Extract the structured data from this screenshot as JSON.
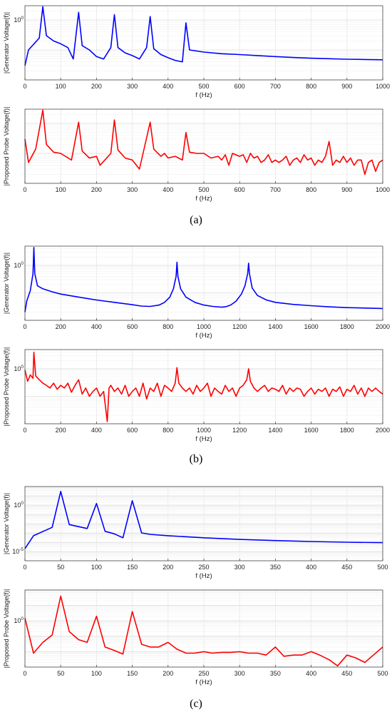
{
  "panel_labels": [
    "(a)",
    "(b)",
    "(c)"
  ],
  "chart_data": [
    {
      "type": "line",
      "panel": "a",
      "series": [
        {
          "name": "",
          "color": "#0000ff"
        }
      ],
      "ylabel": "|Generator Voltage(f)|",
      "xlabel": "f (Hz)",
      "xlim": [
        0,
        1000
      ],
      "xticks": [
        0,
        100,
        200,
        300,
        400,
        500,
        600,
        700,
        800,
        900,
        1000
      ],
      "yscale": "log",
      "ylim": [
        0.01,
        3
      ],
      "yticks": [
        1
      ],
      "ytick_labels": [
        "10^0"
      ],
      "x": [
        0,
        10,
        40,
        50,
        60,
        80,
        100,
        120,
        135,
        150,
        160,
        180,
        200,
        220,
        240,
        250,
        260,
        280,
        300,
        320,
        340,
        350,
        360,
        380,
        400,
        420,
        440,
        450,
        460,
        500,
        550,
        600,
        650,
        700,
        750,
        800,
        850,
        900,
        950,
        1000
      ],
      "y": [
        0.03,
        0.1,
        0.25,
        2.8,
        0.3,
        0.2,
        0.16,
        0.12,
        0.05,
        1.8,
        0.14,
        0.1,
        0.06,
        0.05,
        0.12,
        1.5,
        0.12,
        0.08,
        0.065,
        0.05,
        0.12,
        1.3,
        0.11,
        0.07,
        0.055,
        0.045,
        0.04,
        0.8,
        0.1,
        0.085,
        0.075,
        0.07,
        0.065,
        0.06,
        0.056,
        0.053,
        0.051,
        0.049,
        0.048,
        0.047
      ],
      "grid": true
    },
    {
      "type": "line",
      "panel": "a",
      "series": [
        {
          "name": "",
          "color": "#ff0000"
        }
      ],
      "ylabel": "|Proposed Probe Voltage(f)|",
      "xlabel": "f (Hz)",
      "xlim": [
        0,
        1000
      ],
      "xticks": [
        0,
        100,
        200,
        300,
        400,
        500,
        600,
        700,
        800,
        900,
        1000
      ],
      "yscale": "log",
      "ylim": [
        0.01,
        3
      ],
      "yticks": [],
      "ytick_labels": [],
      "x": [
        0,
        10,
        30,
        50,
        60,
        80,
        100,
        130,
        150,
        160,
        180,
        200,
        210,
        240,
        250,
        260,
        280,
        300,
        320,
        330,
        350,
        360,
        380,
        390,
        400,
        420,
        440,
        450,
        460,
        480,
        500,
        520,
        540,
        550,
        560,
        570,
        580,
        600,
        610,
        620,
        630,
        640,
        650,
        660,
        670,
        680,
        690,
        700,
        710,
        720,
        730,
        740,
        750,
        760,
        770,
        780,
        790,
        800,
        810,
        820,
        830,
        840,
        850,
        860,
        870,
        880,
        890,
        900,
        910,
        920,
        930,
        940,
        950,
        960,
        970,
        980,
        990,
        1000
      ],
      "y": [
        0.3,
        0.05,
        0.14,
        2.8,
        0.2,
        0.11,
        0.1,
        0.06,
        1.1,
        0.12,
        0.07,
        0.08,
        0.04,
        0.1,
        1.3,
        0.13,
        0.07,
        0.06,
        0.03,
        0.1,
        1.1,
        0.14,
        0.08,
        0.1,
        0.07,
        0.08,
        0.06,
        0.5,
        0.11,
        0.1,
        0.1,
        0.07,
        0.08,
        0.06,
        0.09,
        0.04,
        0.1,
        0.08,
        0.09,
        0.05,
        0.1,
        0.07,
        0.08,
        0.05,
        0.06,
        0.09,
        0.05,
        0.06,
        0.05,
        0.06,
        0.08,
        0.04,
        0.06,
        0.07,
        0.05,
        0.09,
        0.06,
        0.07,
        0.04,
        0.06,
        0.05,
        0.08,
        0.25,
        0.04,
        0.06,
        0.05,
        0.08,
        0.05,
        0.07,
        0.04,
        0.06,
        0.06,
        0.02,
        0.05,
        0.06,
        0.025,
        0.05,
        0.06
      ],
      "grid": true
    },
    {
      "type": "line",
      "panel": "b",
      "series": [
        {
          "name": "",
          "color": "#0000ff"
        }
      ],
      "ylabel": "|Generator Voltage(f)|",
      "xlabel": "f (Hz)",
      "xlim": [
        0,
        2000
      ],
      "xticks": [
        0,
        200,
        400,
        600,
        800,
        1000,
        1200,
        1400,
        1600,
        1800,
        2000
      ],
      "yscale": "log",
      "ylim": [
        0.01,
        5
      ],
      "yticks": [
        1
      ],
      "ytick_labels": [
        "10^0"
      ],
      "x": [
        0,
        10,
        30,
        45,
        50,
        55,
        70,
        100,
        150,
        200,
        300,
        400,
        500,
        600,
        650,
        700,
        750,
        780,
        810,
        830,
        845,
        850,
        855,
        870,
        900,
        950,
        1000,
        1050,
        1100,
        1120,
        1150,
        1180,
        1210,
        1230,
        1245,
        1250,
        1255,
        1270,
        1300,
        1350,
        1400,
        1500,
        1600,
        1700,
        1800,
        1900,
        2000
      ],
      "y": [
        0.02,
        0.05,
        0.12,
        0.5,
        4.5,
        0.5,
        0.18,
        0.14,
        0.11,
        0.09,
        0.07,
        0.055,
        0.045,
        0.037,
        0.033,
        0.032,
        0.036,
        0.045,
        0.07,
        0.14,
        0.4,
        1.3,
        0.4,
        0.14,
        0.07,
        0.045,
        0.036,
        0.032,
        0.03,
        0.031,
        0.036,
        0.05,
        0.09,
        0.18,
        0.5,
        1.2,
        0.5,
        0.15,
        0.08,
        0.055,
        0.045,
        0.038,
        0.034,
        0.031,
        0.029,
        0.028,
        0.027
      ],
      "grid": true
    },
    {
      "type": "line",
      "panel": "b",
      "series": [
        {
          "name": "",
          "color": "#ff0000"
        }
      ],
      "ylabel": "|Proposed Probe Voltage(f)|",
      "xlabel": "f (Hz)",
      "xlim": [
        0,
        2000
      ],
      "xticks": [
        0,
        200,
        400,
        600,
        800,
        1000,
        1200,
        1400,
        1600,
        1800,
        2000
      ],
      "yscale": "log",
      "ylim": [
        0.01,
        5
      ],
      "yticks": [
        1
      ],
      "ytick_labels": [
        "10^0"
      ],
      "x": [
        0,
        15,
        30,
        45,
        50,
        60,
        80,
        100,
        120,
        140,
        160,
        180,
        200,
        220,
        240,
        260,
        280,
        300,
        320,
        340,
        360,
        380,
        400,
        420,
        440,
        460,
        470,
        480,
        500,
        520,
        540,
        560,
        580,
        600,
        620,
        640,
        660,
        680,
        700,
        720,
        740,
        760,
        780,
        800,
        820,
        840,
        850,
        860,
        880,
        900,
        920,
        940,
        960,
        980,
        1000,
        1020,
        1040,
        1060,
        1080,
        1100,
        1120,
        1140,
        1160,
        1180,
        1200,
        1220,
        1240,
        1250,
        1260,
        1280,
        1300,
        1320,
        1340,
        1360,
        1380,
        1400,
        1420,
        1440,
        1460,
        1480,
        1500,
        1520,
        1540,
        1560,
        1580,
        1600,
        1620,
        1640,
        1660,
        1680,
        1700,
        1720,
        1740,
        1760,
        1780,
        1800,
        1820,
        1840,
        1860,
        1880,
        1900,
        1920,
        1940,
        1960,
        1980,
        2000
      ],
      "y": [
        0.9,
        0.35,
        0.6,
        0.45,
        4.0,
        0.55,
        0.4,
        0.3,
        0.25,
        0.2,
        0.3,
        0.18,
        0.25,
        0.2,
        0.3,
        0.14,
        0.25,
        0.4,
        0.12,
        0.2,
        0.1,
        0.15,
        0.2,
        0.1,
        0.15,
        0.012,
        0.2,
        0.25,
        0.15,
        0.2,
        0.12,
        0.25,
        0.1,
        0.15,
        0.2,
        0.1,
        0.3,
        0.08,
        0.2,
        0.15,
        0.3,
        0.1,
        0.25,
        0.2,
        0.15,
        0.3,
        1.1,
        0.3,
        0.2,
        0.15,
        0.2,
        0.12,
        0.25,
        0.15,
        0.2,
        0.3,
        0.1,
        0.2,
        0.15,
        0.12,
        0.25,
        0.15,
        0.2,
        0.1,
        0.2,
        0.25,
        0.4,
        1.0,
        0.35,
        0.2,
        0.15,
        0.2,
        0.25,
        0.15,
        0.2,
        0.18,
        0.15,
        0.25,
        0.12,
        0.2,
        0.15,
        0.2,
        0.18,
        0.1,
        0.15,
        0.2,
        0.12,
        0.18,
        0.15,
        0.2,
        0.1,
        0.18,
        0.15,
        0.22,
        0.1,
        0.18,
        0.15,
        0.25,
        0.12,
        0.2,
        0.1,
        0.2,
        0.15,
        0.2,
        0.15,
        0.12
      ],
      "grid": true
    },
    {
      "type": "line",
      "panel": "c",
      "series": [
        {
          "name": "",
          "color": "#0000ff"
        }
      ],
      "ylabel": "|Generator Voltage(f)|",
      "xlabel": "f (Hz)",
      "xlim": [
        0,
        500
      ],
      "xticks": [
        0,
        50,
        100,
        150,
        200,
        250,
        300,
        350,
        400,
        450,
        500
      ],
      "yscale": "log",
      "ylim": [
        1e-06,
        100
      ],
      "yticks": [
        1e-05,
        1
      ],
      "ytick_labels": [
        "10^-5",
        "10^0"
      ],
      "x": [
        0,
        12,
        38,
        50,
        62,
        87,
        100,
        112,
        125,
        137,
        150,
        163,
        175,
        200,
        250,
        300,
        350,
        400,
        450,
        500
      ],
      "y": [
        2e-05,
        0.0005,
        0.004,
        30,
        0.008,
        0.003,
        1.5,
        0.0015,
        0.0008,
        0.0003,
        3,
        0.001,
        0.0007,
        0.0005,
        0.0003,
        0.0002,
        0.00015,
        0.00012,
        0.0001,
        9e-05
      ],
      "grid": true
    },
    {
      "type": "line",
      "panel": "c",
      "series": [
        {
          "name": "",
          "color": "#ff0000"
        }
      ],
      "ylabel": "|Proposed Probe Voltage(f)|",
      "xlabel": "f (Hz)",
      "xlim": [
        0,
        500
      ],
      "xticks": [
        0,
        50,
        100,
        150,
        200,
        250,
        300,
        350,
        400,
        450,
        500
      ],
      "yscale": "log",
      "ylim": [
        0.001,
        100
      ],
      "yticks": [
        1
      ],
      "ytick_labels": [
        "10^0"
      ],
      "x": [
        0,
        12,
        25,
        38,
        50,
        62,
        75,
        87,
        100,
        112,
        125,
        137,
        150,
        163,
        175,
        187,
        200,
        212,
        225,
        237,
        250,
        262,
        275,
        287,
        300,
        312,
        325,
        337,
        350,
        362,
        375,
        387,
        400,
        412,
        425,
        437,
        450,
        462,
        475,
        487,
        500
      ],
      "y": [
        1.5,
        0.008,
        0.04,
        0.12,
        40,
        0.2,
        0.06,
        0.04,
        2,
        0.02,
        0.012,
        0.007,
        4,
        0.03,
        0.02,
        0.02,
        0.04,
        0.015,
        0.008,
        0.008,
        0.01,
        0.008,
        0.009,
        0.009,
        0.01,
        0.008,
        0.008,
        0.006,
        0.02,
        0.005,
        0.006,
        0.006,
        0.01,
        0.006,
        0.003,
        0.0012,
        0.006,
        0.004,
        0.002,
        0.006,
        0.02
      ],
      "grid": true
    }
  ]
}
